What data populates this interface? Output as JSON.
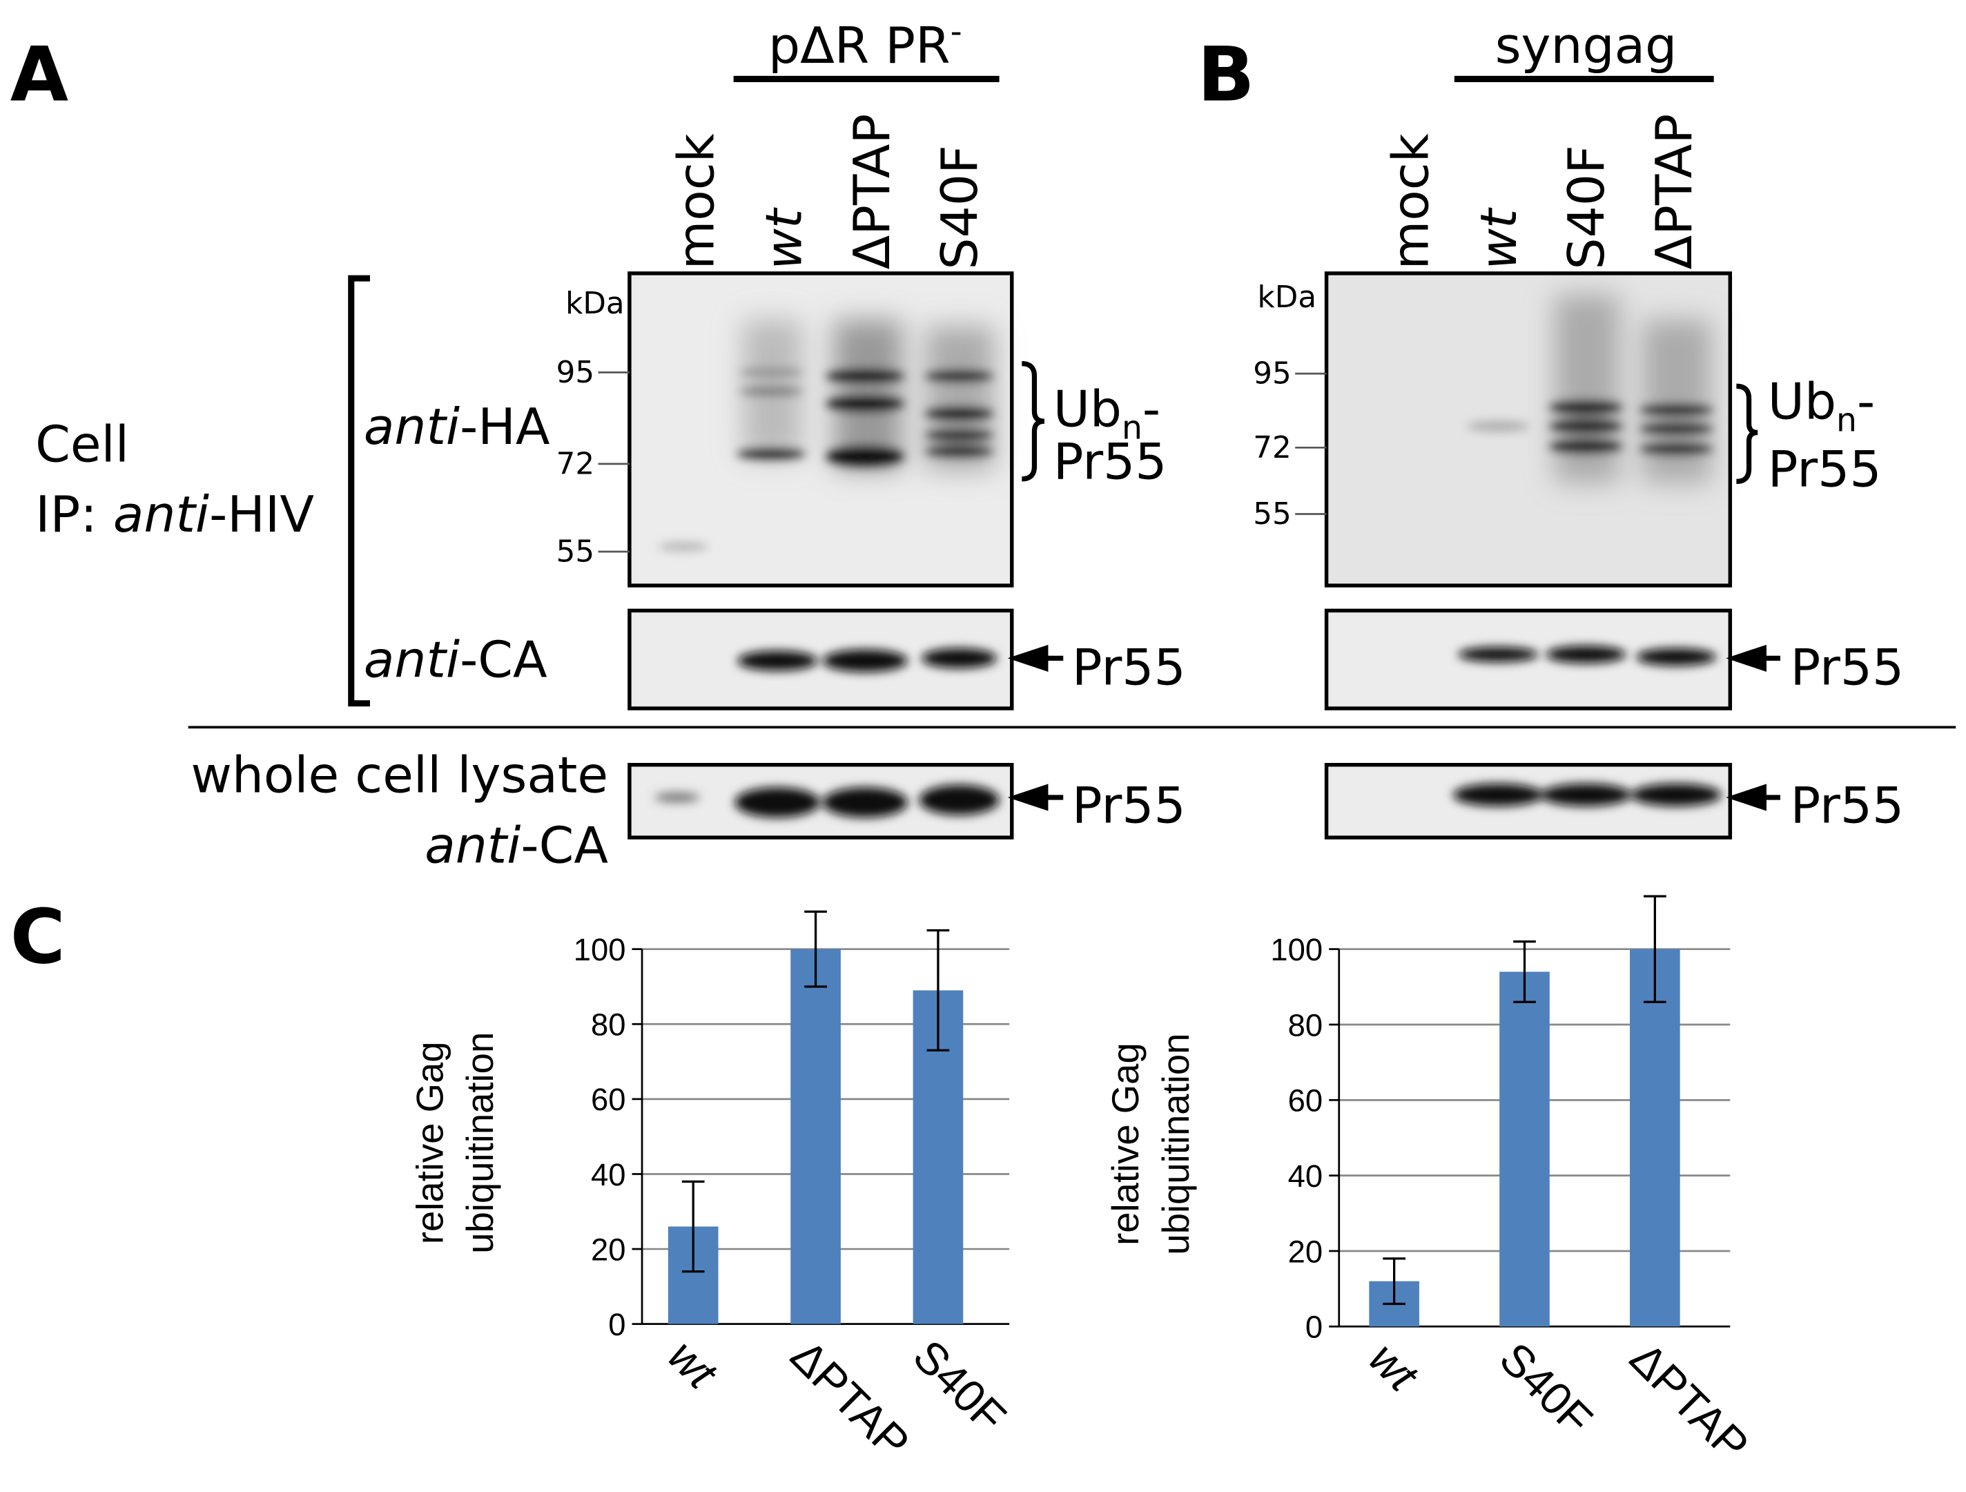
{
  "panels": {
    "a": "A",
    "b": "B",
    "c": "C"
  },
  "blot_a": {
    "group": {
      "main": "pΔR PR",
      "sup": "-"
    },
    "lanes": [
      "mock",
      "wt",
      "ΔPTAP",
      "S40F"
    ],
    "kda_unit": "kDa",
    "markers": [
      95,
      72,
      55
    ],
    "band_label": {
      "main": "Ub",
      "sub": "n",
      "suffix": "-",
      "line2": "Pr55"
    },
    "pr55": [
      "Pr55",
      "Pr55"
    ]
  },
  "blot_b": {
    "group": {
      "main": "syngag"
    },
    "lanes": [
      "mock",
      "wt",
      "S40F",
      "ΔPTAP"
    ],
    "kda_unit": "kDa",
    "markers": [
      95,
      72,
      55
    ],
    "band_label": {
      "main": "Ub",
      "sub": "n",
      "suffix": "-",
      "line2": "Pr55"
    },
    "pr55": [
      "Pr55",
      "Pr55"
    ]
  },
  "row_labels": {
    "cell": "Cell",
    "ip_prefix": "IP: ",
    "ip_italic": "anti",
    "ip_suffix": "-HIV",
    "ha_italic": "anti",
    "ha_suffix": "-HA",
    "ca_italic": "anti",
    "ca_suffix": "-CA",
    "wcl": "whole cell lysate",
    "wcl_italic": "anti",
    "wcl_suffix": "-CA"
  },
  "chart_data": [
    {
      "type": "bar",
      "ylabel": [
        "relative Gag",
        "ubiquitination"
      ],
      "categories": [
        "wt",
        "ΔPTAP",
        "S40F"
      ],
      "values": [
        26,
        100,
        89
      ],
      "errors": [
        12,
        10,
        16
      ],
      "color": "#4f81bd",
      "ylim": [
        0,
        100
      ],
      "yticks": [
        0,
        20,
        40,
        60,
        80,
        100
      ],
      "grid": true
    },
    {
      "type": "bar",
      "ylabel": [
        "relative Gag",
        "ubiquitination"
      ],
      "categories": [
        "wt",
        "S40F",
        "ΔPTAP"
      ],
      "values": [
        12,
        94,
        100
      ],
      "errors": [
        6,
        8,
        14
      ],
      "color": "#4f81bd",
      "ylim": [
        0,
        100
      ],
      "yticks": [
        0,
        20,
        40,
        60,
        80,
        100
      ],
      "grid": true
    }
  ]
}
